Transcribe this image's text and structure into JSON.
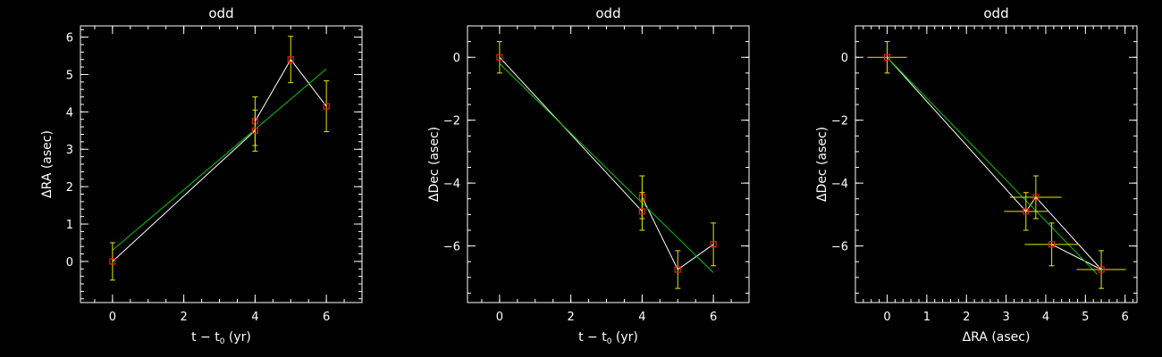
{
  "colors": {
    "background": "#000000",
    "axes": "#ffffff",
    "data_line": "#ffffff",
    "fit_line": "#00c800",
    "error_bars": "#e8e800",
    "markers": "#e02020"
  },
  "chart_data": [
    {
      "type": "scatter",
      "title": "odd",
      "xlabel": "t − t",
      "xlabel_sub": "0",
      "xlabel_unit": " (yr)",
      "ylabel": "ΔRA (asec)",
      "xlim": [
        -0.9,
        7.0
      ],
      "ylim": [
        -1.1,
        6.3
      ],
      "xticks": [
        0,
        2,
        4,
        6
      ],
      "yticks": [
        0,
        1,
        2,
        3,
        4,
        5,
        6
      ],
      "points": [
        {
          "x": 0,
          "y": 0.0,
          "yerr": 0.5
        },
        {
          "x": 4,
          "y": 3.75,
          "yerr": 0.65
        },
        {
          "x": 4,
          "y": 3.5,
          "yerr": 0.55
        },
        {
          "x": 5,
          "y": 5.4,
          "yerr": 0.62
        },
        {
          "x": 6,
          "y": 4.15,
          "yerr": 0.68
        }
      ],
      "connect_order": [
        0,
        2,
        1,
        3,
        4
      ],
      "fit": {
        "x": [
          0,
          6
        ],
        "y": [
          0.3,
          5.15
        ]
      }
    },
    {
      "type": "scatter",
      "title": "odd",
      "xlabel": "t − t",
      "xlabel_sub": "0",
      "xlabel_unit": " (yr)",
      "ylabel": "ΔDec (asec)",
      "xlim": [
        -0.9,
        7.0
      ],
      "ylim": [
        -7.8,
        1.0
      ],
      "xticks": [
        0,
        2,
        4,
        6
      ],
      "yticks": [
        0,
        -2,
        -4,
        -6
      ],
      "points": [
        {
          "x": 0,
          "y": 0.0,
          "yerr": 0.5
        },
        {
          "x": 4,
          "y": -4.45,
          "yerr": 0.68
        },
        {
          "x": 4,
          "y": -4.9,
          "yerr": 0.6
        },
        {
          "x": 5,
          "y": -6.75,
          "yerr": 0.6
        },
        {
          "x": 6,
          "y": -5.95,
          "yerr": 0.68
        }
      ],
      "connect_order": [
        0,
        2,
        1,
        3,
        4
      ],
      "fit": {
        "x": [
          0,
          6
        ],
        "y": [
          -0.2,
          -6.85
        ]
      }
    },
    {
      "type": "scatter",
      "title": "odd",
      "xlabel": "ΔRA (asec)",
      "xlabel_sub": "",
      "xlabel_unit": "",
      "ylabel": "ΔDec (asec)",
      "xlim": [
        -0.8,
        6.3
      ],
      "ylim": [
        -7.8,
        1.0
      ],
      "xticks": [
        0,
        1,
        2,
        3,
        4,
        5,
        6
      ],
      "yticks": [
        0,
        -2,
        -4,
        -6
      ],
      "points": [
        {
          "x": 0.0,
          "y": 0.0,
          "xerr": 0.5,
          "yerr": 0.5
        },
        {
          "x": 3.75,
          "y": -4.45,
          "xerr": 0.65,
          "yerr": 0.68
        },
        {
          "x": 3.5,
          "y": -4.9,
          "xerr": 0.55,
          "yerr": 0.6
        },
        {
          "x": 5.4,
          "y": -6.75,
          "xerr": 0.62,
          "yerr": 0.6
        },
        {
          "x": 4.15,
          "y": -5.95,
          "xerr": 0.68,
          "yerr": 0.68
        }
      ],
      "connect_order": [
        0,
        2,
        1,
        3,
        4
      ],
      "fit": {
        "x": [
          0,
          5.3
        ],
        "y": [
          0.0,
          -6.9
        ]
      }
    }
  ]
}
